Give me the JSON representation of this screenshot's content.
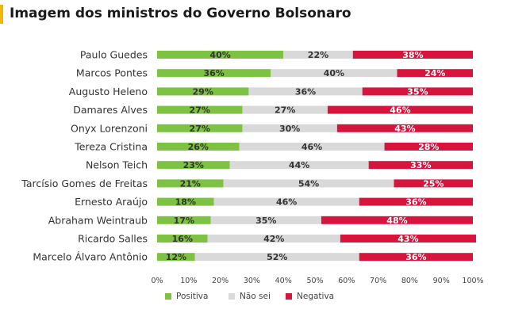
{
  "title": "Imagem dos ministros do Governo Bolsonaro",
  "colors": {
    "accent": "#F2B705",
    "positiva": "#7DC242",
    "nao_sei": "#D9D9D9",
    "negativa": "#D7143C"
  },
  "chart_data": {
    "type": "bar",
    "orientation": "horizontal",
    "stacked": "percent",
    "title": "Imagem dos ministros do Governo Bolsonaro",
    "categories": [
      "Paulo Guedes",
      "Marcos Pontes",
      "Augusto Heleno",
      "Damares Alves",
      "Onyx Lorenzoni",
      "Tereza Cristina",
      "Nelson Teich",
      "Tarcísio Gomes de Freitas",
      "Ernesto Araújo",
      "Abraham Weintraub",
      "Ricardo Salles",
      "Marcelo Álvaro Antônio"
    ],
    "series": [
      {
        "name": "Positiva",
        "color": "#7DC242",
        "label_color": "#333333",
        "values": [
          40,
          36,
          29,
          27,
          27,
          26,
          23,
          21,
          18,
          17,
          16,
          12
        ]
      },
      {
        "name": "Não sei",
        "color": "#D9D9D9",
        "label_color": "#333333",
        "values": [
          22,
          40,
          36,
          27,
          30,
          46,
          44,
          54,
          46,
          35,
          42,
          52
        ]
      },
      {
        "name": "Negativa",
        "color": "#D7143C",
        "label_color": "#ffffff",
        "values": [
          38,
          24,
          35,
          46,
          43,
          28,
          33,
          25,
          36,
          48,
          43,
          36
        ]
      }
    ],
    "xlim": [
      0,
      100
    ],
    "xticks": [
      "0%",
      "10%",
      "20%",
      "30%",
      "40%",
      "50%",
      "60%",
      "70%",
      "80%",
      "90%",
      "100%"
    ],
    "legend_position": "bottom",
    "grid": false
  }
}
